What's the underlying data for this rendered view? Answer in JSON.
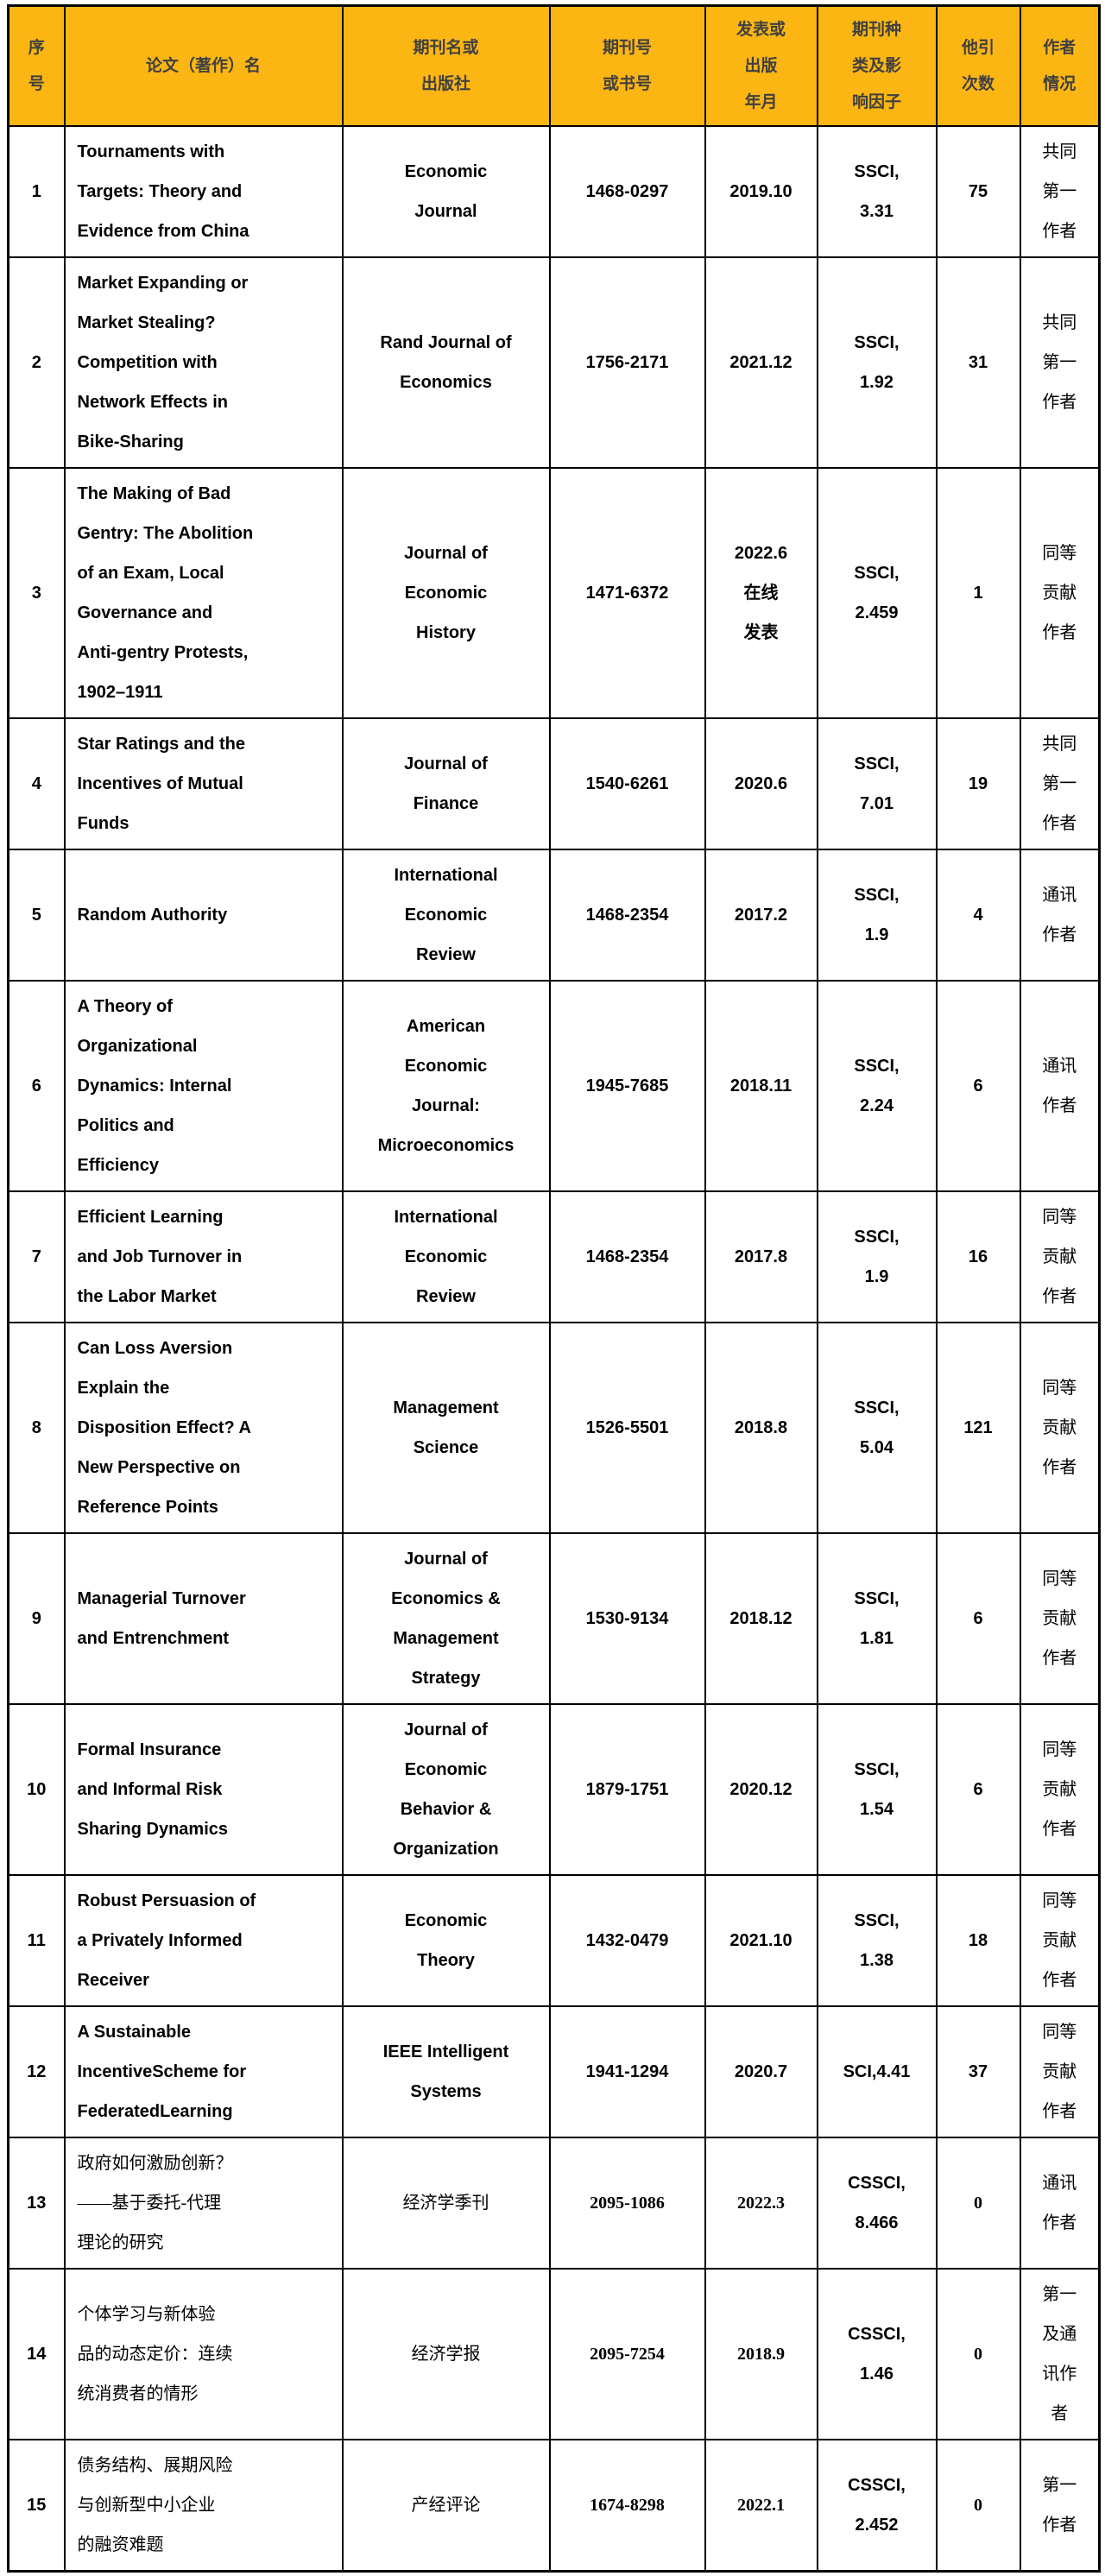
{
  "colors": {
    "header_bg": "#FBB614",
    "header_fg": "#404040",
    "border": "#000000"
  },
  "table": {
    "columns": [
      {
        "key": "index",
        "label": "序\n号"
      },
      {
        "key": "title",
        "label": "论文（著作）名"
      },
      {
        "key": "journal",
        "label": "期刊名或\n出版社"
      },
      {
        "key": "issn",
        "label": "期刊号\n或书号"
      },
      {
        "key": "date",
        "label": "发表或\n出版\n年月"
      },
      {
        "key": "impact",
        "label": "期刊种\n类及影\n响因子"
      },
      {
        "key": "citations",
        "label": "他引\n次数"
      },
      {
        "key": "author",
        "label": "作者\n情况"
      }
    ],
    "rows": [
      {
        "index": "1",
        "title": "Tournaments with\nTargets: Theory and\nEvidence from China",
        "journal": "Economic\nJournal",
        "issn": "1468-0297",
        "date": "2019.10",
        "impact": "SSCI,\n3.31",
        "citations": "75",
        "author": "共同\n第一\n作者",
        "cn": false
      },
      {
        "index": "2",
        "title": "Market Expanding or\nMarket Stealing?\nCompetition with\nNetwork Effects in\nBike-Sharing",
        "journal": "Rand Journal of\nEconomics",
        "issn": "1756-2171",
        "date": "2021.12",
        "impact": "SSCI,\n1.92",
        "citations": "31",
        "author": "共同\n第一\n作者",
        "cn": false
      },
      {
        "index": "3",
        "title": "The Making of Bad\nGentry: The Abolition\nof an Exam, Local\nGovernance and\nAnti-gentry Protests,\n1902–1911",
        "journal": "Journal of\nEconomic\nHistory",
        "issn": "1471-6372",
        "date": "2022.6\n在线\n发表",
        "impact": "SSCI,\n2.459",
        "citations": "1",
        "author": "同等\n贡献\n作者",
        "cn": false
      },
      {
        "index": "4",
        "title": "Star Ratings and the\nIncentives of Mutual\nFunds",
        "journal": "Journal of\nFinance",
        "issn": "1540-6261",
        "date": "2020.6",
        "impact": "SSCI,\n7.01",
        "citations": "19",
        "author": "共同\n第一\n作者",
        "cn": false
      },
      {
        "index": "5",
        "title": "Random Authority",
        "journal": "International\nEconomic\nReview",
        "issn": "1468-2354",
        "date": "2017.2",
        "impact": "SSCI,\n1.9",
        "citations": "4",
        "author": "通讯\n作者",
        "cn": false
      },
      {
        "index": "6",
        "title": "A Theory of\nOrganizational\nDynamics: Internal\nPolitics and\nEfficiency",
        "journal": "American\nEconomic\nJournal:\nMicroeconomics",
        "issn": "1945-7685",
        "date": "2018.11",
        "impact": "SSCI,\n2.24",
        "citations": "6",
        "author": "通讯\n作者",
        "cn": false
      },
      {
        "index": "7",
        "title": "Efficient Learning\nand Job Turnover in\nthe Labor Market",
        "journal": "International\nEconomic\nReview",
        "issn": "1468-2354",
        "date": "2017.8",
        "impact": "SSCI,\n1.9",
        "citations": "16",
        "author": "同等\n贡献\n作者",
        "cn": false
      },
      {
        "index": "8",
        "title": "Can Loss Aversion\nExplain the\nDisposition Effect? A\nNew Perspective on\nReference Points",
        "journal": "Management\nScience",
        "issn": "1526-5501",
        "date": "2018.8",
        "impact": "SSCI,\n5.04",
        "citations": "121",
        "author": "同等\n贡献\n作者",
        "cn": false
      },
      {
        "index": "9",
        "title": "Managerial Turnover\nand Entrenchment",
        "journal": "Journal of\nEconomics &\nManagement\nStrategy",
        "issn": "1530-9134",
        "date": "2018.12",
        "impact": "SSCI,\n1.81",
        "citations": "6",
        "author": "同等\n贡献\n作者",
        "cn": false
      },
      {
        "index": "10",
        "title": "Formal Insurance\nand Informal Risk\nSharing Dynamics",
        "journal": "Journal of\nEconomic\nBehavior &\nOrganization",
        "issn": "1879-1751",
        "date": "2020.12",
        "impact": "SSCI,\n1.54",
        "citations": "6",
        "author": "同等\n贡献\n作者",
        "cn": false
      },
      {
        "index": "11",
        "title": "Robust Persuasion of\na Privately Informed\nReceiver",
        "journal": "Economic\nTheory",
        "issn": "1432-0479",
        "date": "2021.10",
        "impact": "SSCI,\n1.38",
        "citations": "18",
        "author": "同等\n贡献\n作者",
        "cn": false
      },
      {
        "index": "12",
        "title": "A Sustainable\nIncentiveScheme for\nFederatedLearning",
        "journal": "IEEE Intelligent\nSystems",
        "issn": "1941-1294",
        "date": "2020.7",
        "impact": "SCI,4.41",
        "citations": "37",
        "author": "同等\n贡献\n作者",
        "cn": false
      },
      {
        "index": "13",
        "title": "政府如何激励创新？\n——基于委托-代理\n理论的研究",
        "journal": "经济学季刊",
        "issn": "2095-1086",
        "date": "2022.3",
        "impact": "CSSCI,\n8.466",
        "citations": "0",
        "author": "通讯\n作者",
        "cn": true
      },
      {
        "index": "14",
        "title": "个体学习与新体验\n品的动态定价：连续\n统消费者的情形",
        "journal": "经济学报",
        "issn": "2095-7254",
        "date": "2018.9",
        "impact": "CSSCI,\n1.46",
        "citations": "0",
        "author": "第一\n及通\n讯作\n者",
        "cn": true
      },
      {
        "index": "15",
        "title": "债务结构、展期风险\n与创新型中小企业\n的融资难题",
        "journal": "产经评论",
        "issn": "1674-8298",
        "date": "2022.1",
        "impact": "CSSCI,\n2.452",
        "citations": "0",
        "author": "第一\n作者",
        "cn": true
      }
    ]
  }
}
